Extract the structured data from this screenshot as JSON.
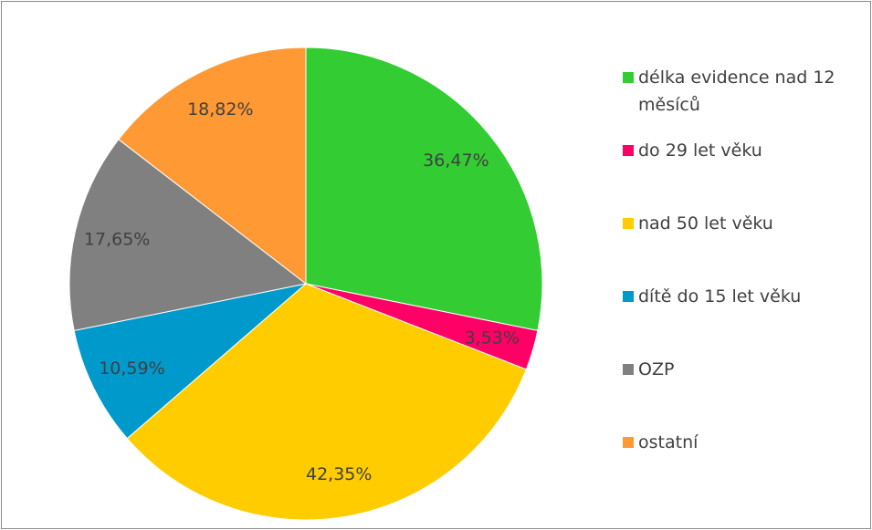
{
  "chart_data": {
    "type": "pie",
    "categories": [
      "délka evidence nad 12 měsíců",
      "do 29 let věku",
      "nad 50 let věku",
      "dítě do 15 let věku",
      "OZP",
      "ostatní"
    ],
    "values": [
      36.47,
      3.53,
      42.35,
      10.59,
      17.65,
      18.82
    ],
    "value_labels": [
      "36,47%",
      "3,53%",
      "42,35%",
      "10,59%",
      "17,65%",
      "18,82%"
    ],
    "colors": [
      "#33cc33",
      "#ff0066",
      "#ffcc00",
      "#0099cc",
      "#808080",
      "#ff9933"
    ],
    "legend": "right"
  }
}
